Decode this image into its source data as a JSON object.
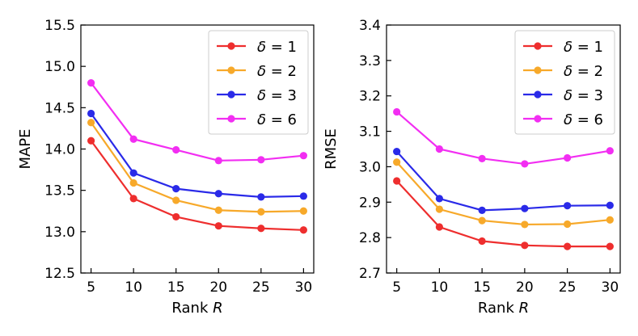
{
  "chart_data": [
    {
      "type": "line",
      "xlabel": "Rank",
      "xlabel_var": "R",
      "ylabel": "MAPE",
      "x": [
        5,
        10,
        15,
        20,
        25,
        30
      ],
      "xlim": [
        3.8,
        31.2
      ],
      "ylim": [
        12.5,
        15.5
      ],
      "xticks": [
        "5",
        "10",
        "15",
        "20",
        "25",
        "30"
      ],
      "yticks": [
        "12.5",
        "13.0",
        "13.5",
        "14.0",
        "14.5",
        "15.0",
        "15.5"
      ],
      "grid": false,
      "legend_position": "top-right",
      "series": [
        {
          "name": "δ = 1",
          "greek": "δ",
          "value_label": "1",
          "color": "#ee2e2e",
          "values": [
            14.1,
            13.4,
            13.18,
            13.07,
            13.04,
            13.02
          ]
        },
        {
          "name": "δ = 2",
          "greek": "δ",
          "value_label": "2",
          "color": "#f7a92a",
          "values": [
            14.32,
            13.59,
            13.38,
            13.26,
            13.24,
            13.25
          ]
        },
        {
          "name": "δ = 3",
          "greek": "δ",
          "value_label": "3",
          "color": "#2a2ae8",
          "values": [
            14.43,
            13.71,
            13.52,
            13.46,
            13.42,
            13.43
          ]
        },
        {
          "name": "δ = 6",
          "greek": "δ",
          "value_label": "6",
          "color": "#f22ef2",
          "values": [
            14.8,
            14.12,
            13.99,
            13.86,
            13.87,
            13.92
          ]
        }
      ]
    },
    {
      "type": "line",
      "xlabel": "Rank",
      "xlabel_var": "R",
      "ylabel": "RMSE",
      "x": [
        5,
        10,
        15,
        20,
        25,
        30
      ],
      "xlim": [
        3.8,
        31.2
      ],
      "ylim": [
        2.7,
        3.4
      ],
      "xticks": [
        "5",
        "10",
        "15",
        "20",
        "25",
        "30"
      ],
      "yticks": [
        "2.7",
        "2.8",
        "2.9",
        "3.0",
        "3.1",
        "3.2",
        "3.3",
        "3.4"
      ],
      "grid": false,
      "legend_position": "top-right",
      "series": [
        {
          "name": "δ = 1",
          "greek": "δ",
          "value_label": "1",
          "color": "#ee2e2e",
          "values": [
            2.96,
            2.83,
            2.79,
            2.778,
            2.775,
            2.775
          ]
        },
        {
          "name": "δ = 2",
          "greek": "δ",
          "value_label": "2",
          "color": "#f7a92a",
          "values": [
            3.013,
            2.88,
            2.848,
            2.837,
            2.838,
            2.85
          ]
        },
        {
          "name": "δ = 3",
          "greek": "δ",
          "value_label": "3",
          "color": "#2a2ae8",
          "values": [
            3.043,
            2.91,
            2.877,
            2.882,
            2.89,
            2.891
          ]
        },
        {
          "name": "δ = 6",
          "greek": "δ",
          "value_label": "6",
          "color": "#f22ef2",
          "values": [
            3.155,
            3.05,
            3.023,
            3.008,
            3.025,
            3.045
          ]
        }
      ]
    }
  ]
}
